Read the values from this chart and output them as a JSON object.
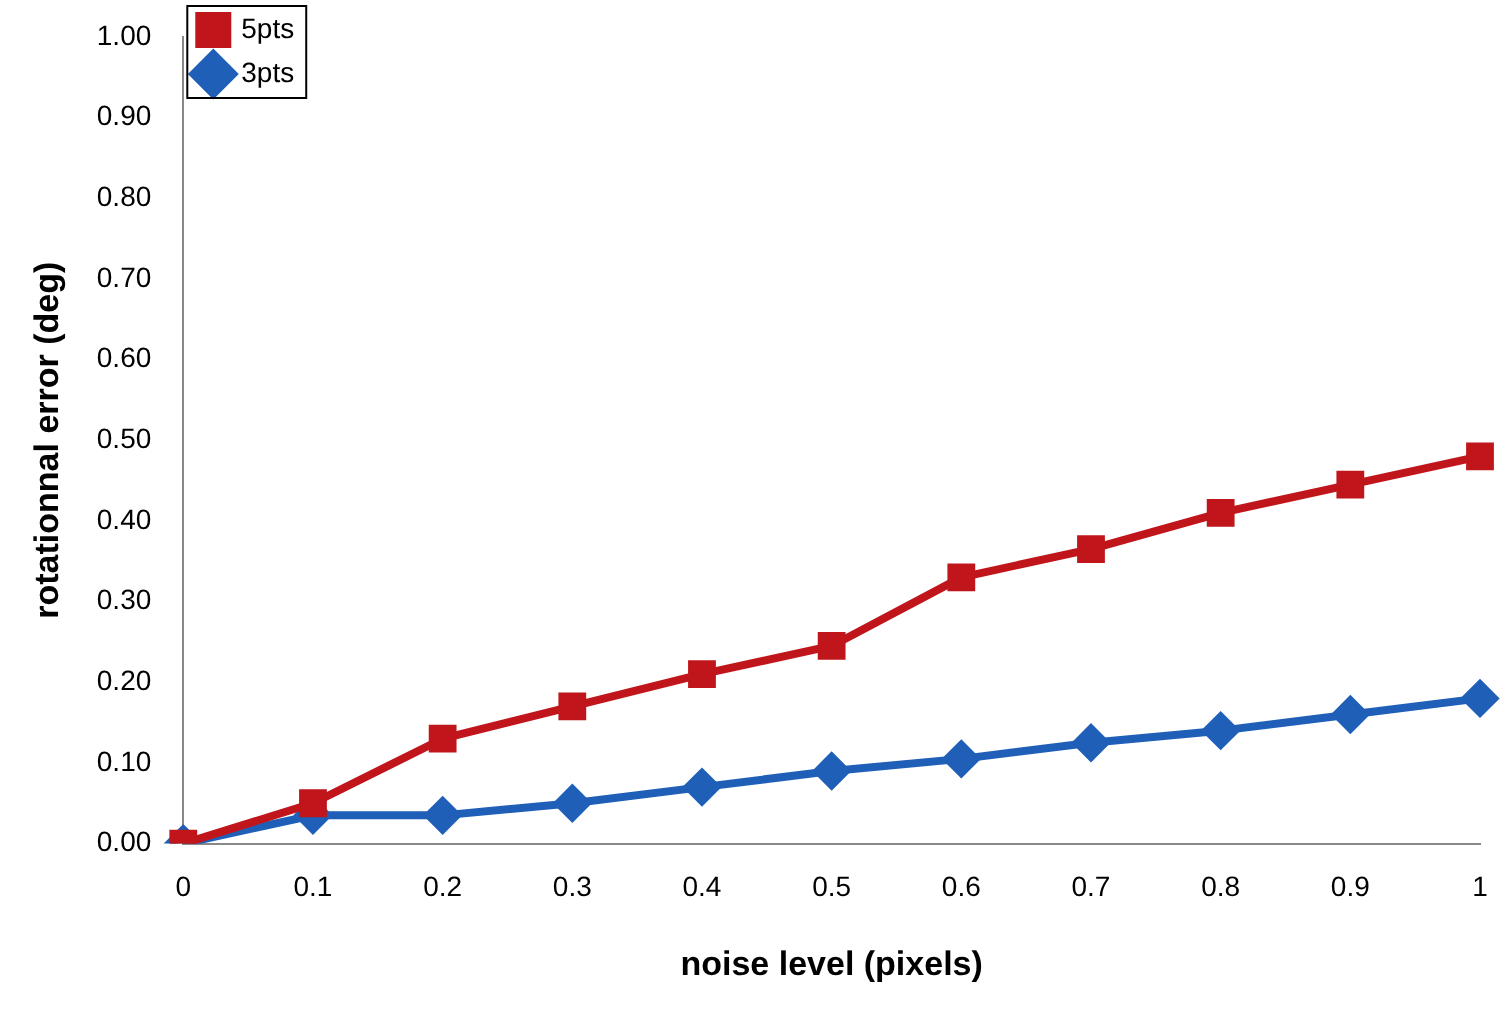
{
  "chart_data": {
    "type": "line",
    "xlabel": "noise level (pixels)",
    "ylabel": "rotationnal error (deg)",
    "categories": [
      "0",
      "0.1",
      "0.2",
      "0.3",
      "0.4",
      "0.5",
      "0.6",
      "0.7",
      "0.8",
      "0.9",
      "1"
    ],
    "series": [
      {
        "name": "5pts",
        "color": "#c0161b",
        "marker": "square",
        "values": [
          0,
          0.05,
          0.13,
          0.17,
          0.21,
          0.245,
          0.33,
          0.365,
          0.41,
          0.445,
          0.48
        ]
      },
      {
        "name": "3pts",
        "color": "#1f5fb8",
        "marker": "diamond",
        "values": [
          0,
          0.035,
          0.035,
          0.05,
          0.07,
          0.09,
          0.105,
          0.125,
          0.14,
          0.16,
          0.18
        ]
      }
    ],
    "ylim": [
      0,
      1
    ],
    "yticks": [
      {
        "value": 0,
        "label": "0.00"
      },
      {
        "value": 0.1,
        "label": "0.10"
      },
      {
        "value": 0.2,
        "label": "0.20"
      },
      {
        "value": 0.3,
        "label": "0.30"
      },
      {
        "value": 0.4,
        "label": "0.40"
      },
      {
        "value": 0.5,
        "label": "0.50"
      },
      {
        "value": 0.6,
        "label": "0.60"
      },
      {
        "value": 0.7,
        "label": "0.70"
      },
      {
        "value": 0.8,
        "label": "0.80"
      },
      {
        "value": 0.9,
        "label": "0.90"
      },
      {
        "value": 1,
        "label": "1.00"
      }
    ],
    "grid": false,
    "legend": "top left"
  }
}
